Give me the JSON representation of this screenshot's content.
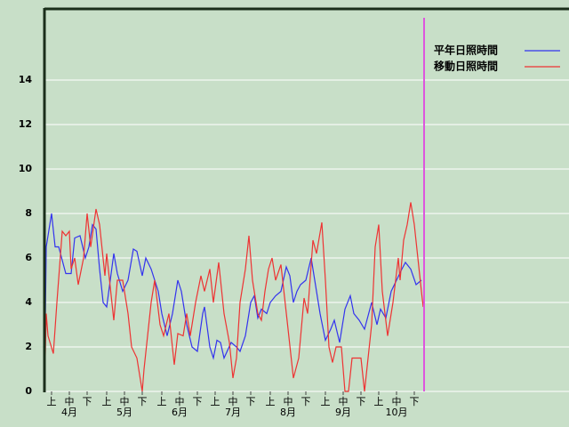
{
  "chart_data": {
    "type": "line",
    "xlim": [
      0,
      214
    ],
    "ylim": [
      0,
      17.2
    ],
    "yticks": [
      0,
      2,
      4,
      6,
      8,
      10,
      12,
      14
    ],
    "grid": true,
    "xticks": [
      {
        "value": 4,
        "label": "上"
      },
      {
        "value": 14,
        "label": "中"
      },
      {
        "value": 24,
        "label": "下"
      },
      {
        "value": 35,
        "label": "上"
      },
      {
        "value": 45,
        "label": "中"
      },
      {
        "value": 55,
        "label": "下"
      },
      {
        "value": 66,
        "label": "上"
      },
      {
        "value": 76,
        "label": "中"
      },
      {
        "value": 86,
        "label": "下"
      },
      {
        "value": 96,
        "label": "上"
      },
      {
        "value": 106,
        "label": "中"
      },
      {
        "value": 116,
        "label": "下"
      },
      {
        "value": 127,
        "label": "上"
      },
      {
        "value": 137,
        "label": "中"
      },
      {
        "value": 147,
        "label": "下"
      },
      {
        "value": 158,
        "label": "上"
      },
      {
        "value": 168,
        "label": "中"
      },
      {
        "value": 178,
        "label": "下"
      },
      {
        "value": 188,
        "label": "上"
      },
      {
        "value": 198,
        "label": "中"
      },
      {
        "value": 208,
        "label": "下"
      }
    ],
    "month_labels": [
      {
        "value": 14,
        "label": "4月"
      },
      {
        "value": 45,
        "label": "5月"
      },
      {
        "value": 76,
        "label": "6月"
      },
      {
        "value": 106,
        "label": "7月"
      },
      {
        "value": 137,
        "label": "8月"
      },
      {
        "value": 168,
        "label": "9月"
      },
      {
        "value": 198,
        "label": "10月"
      }
    ],
    "series": [
      {
        "name": "平年日照時間",
        "color": "#3333ee",
        "x": [
          0,
          1,
          4,
          6,
          8,
          12,
          15,
          17,
          20,
          23,
          25,
          27,
          29,
          31,
          33,
          35,
          37,
          39,
          41,
          44,
          47,
          50,
          52,
          55,
          57,
          60,
          64,
          66,
          69,
          72,
          75,
          77,
          80,
          83,
          86,
          89,
          90,
          93,
          95,
          97,
          99,
          101,
          105,
          108,
          110,
          113,
          116,
          118,
          120,
          122,
          125,
          127,
          130,
          133,
          136,
          138,
          140,
          142,
          144,
          147,
          150,
          152,
          155,
          158,
          161,
          163,
          166,
          169,
          172,
          174,
          177,
          180,
          184,
          187,
          189,
          192,
          195,
          198,
          201,
          203,
          206,
          209,
          212
        ],
        "values": [
          0,
          6.5,
          8,
          6.5,
          6.5,
          5.3,
          5.3,
          6.9,
          7,
          6,
          6.5,
          7.5,
          7.3,
          5.5,
          4,
          3.8,
          5,
          6.2,
          5.3,
          4.5,
          5,
          6.4,
          6.3,
          5.2,
          6,
          5.5,
          4.5,
          3.5,
          2.5,
          3.5,
          5,
          4.5,
          3,
          2,
          1.8,
          3.5,
          3.8,
          2,
          1.5,
          2.3,
          2.2,
          1.5,
          2.2,
          2,
          1.8,
          2.5,
          4,
          4.3,
          3.3,
          3.7,
          3.5,
          4,
          4.3,
          4.5,
          5.6,
          5.2,
          4,
          4.5,
          4.8,
          5,
          6,
          5,
          3.5,
          2.3,
          2.8,
          3.2,
          2.2,
          3.7,
          4.3,
          3.5,
          3.2,
          2.8,
          4,
          3,
          3.7,
          3.3,
          4.5,
          5,
          5.5,
          5.8,
          5.5,
          4.8,
          5
        ]
      },
      {
        "name": "移動日照時間",
        "color": "#ee3333",
        "x": [
          0,
          1,
          2,
          5,
          7,
          10,
          12,
          14,
          15,
          17,
          19,
          22,
          24,
          26,
          29,
          31,
          34,
          35,
          39,
          41,
          44,
          47,
          49,
          52,
          55,
          56,
          58,
          60,
          62,
          65,
          67,
          70,
          73,
          75,
          78,
          80,
          82,
          85,
          88,
          90,
          93,
          95,
          98,
          101,
          104,
          106,
          108,
          110,
          113,
          115,
          117,
          120,
          122,
          124,
          126,
          128,
          130,
          133,
          137,
          140,
          143,
          146,
          148,
          151,
          153,
          156,
          158,
          160,
          162,
          164,
          167,
          169,
          171,
          173,
          178,
          180,
          182,
          184,
          186,
          188,
          190,
          193,
          196,
          199,
          200,
          202,
          204,
          206,
          208,
          210,
          212,
          213
        ],
        "values": [
          0,
          3.5,
          2.5,
          1.7,
          4,
          7.2,
          7,
          7.2,
          5.5,
          6,
          4.8,
          6,
          8,
          6.5,
          8.2,
          7.5,
          5.2,
          6.2,
          3.2,
          5,
          5,
          3.5,
          2,
          1.5,
          0,
          1,
          2.5,
          4,
          5,
          3,
          2.5,
          3.5,
          1.2,
          2.6,
          2.5,
          3.5,
          2.5,
          4,
          5.2,
          4.5,
          5.5,
          4,
          5.8,
          3.5,
          2.2,
          0.6,
          1.5,
          4,
          5.5,
          7,
          5,
          3.5,
          3.2,
          4.5,
          5.5,
          6,
          5,
          5.7,
          2.8,
          0.6,
          1.5,
          4.2,
          3.5,
          6.8,
          6.2,
          7.6,
          5,
          2,
          1.3,
          2,
          2,
          0,
          0,
          1.5,
          1.5,
          0,
          1.5,
          3,
          6.5,
          7.5,
          4.5,
          2.5,
          4,
          6,
          5,
          6.8,
          7.5,
          8.5,
          7.5,
          6,
          4.5,
          3.8
        ]
      }
    ]
  }
}
